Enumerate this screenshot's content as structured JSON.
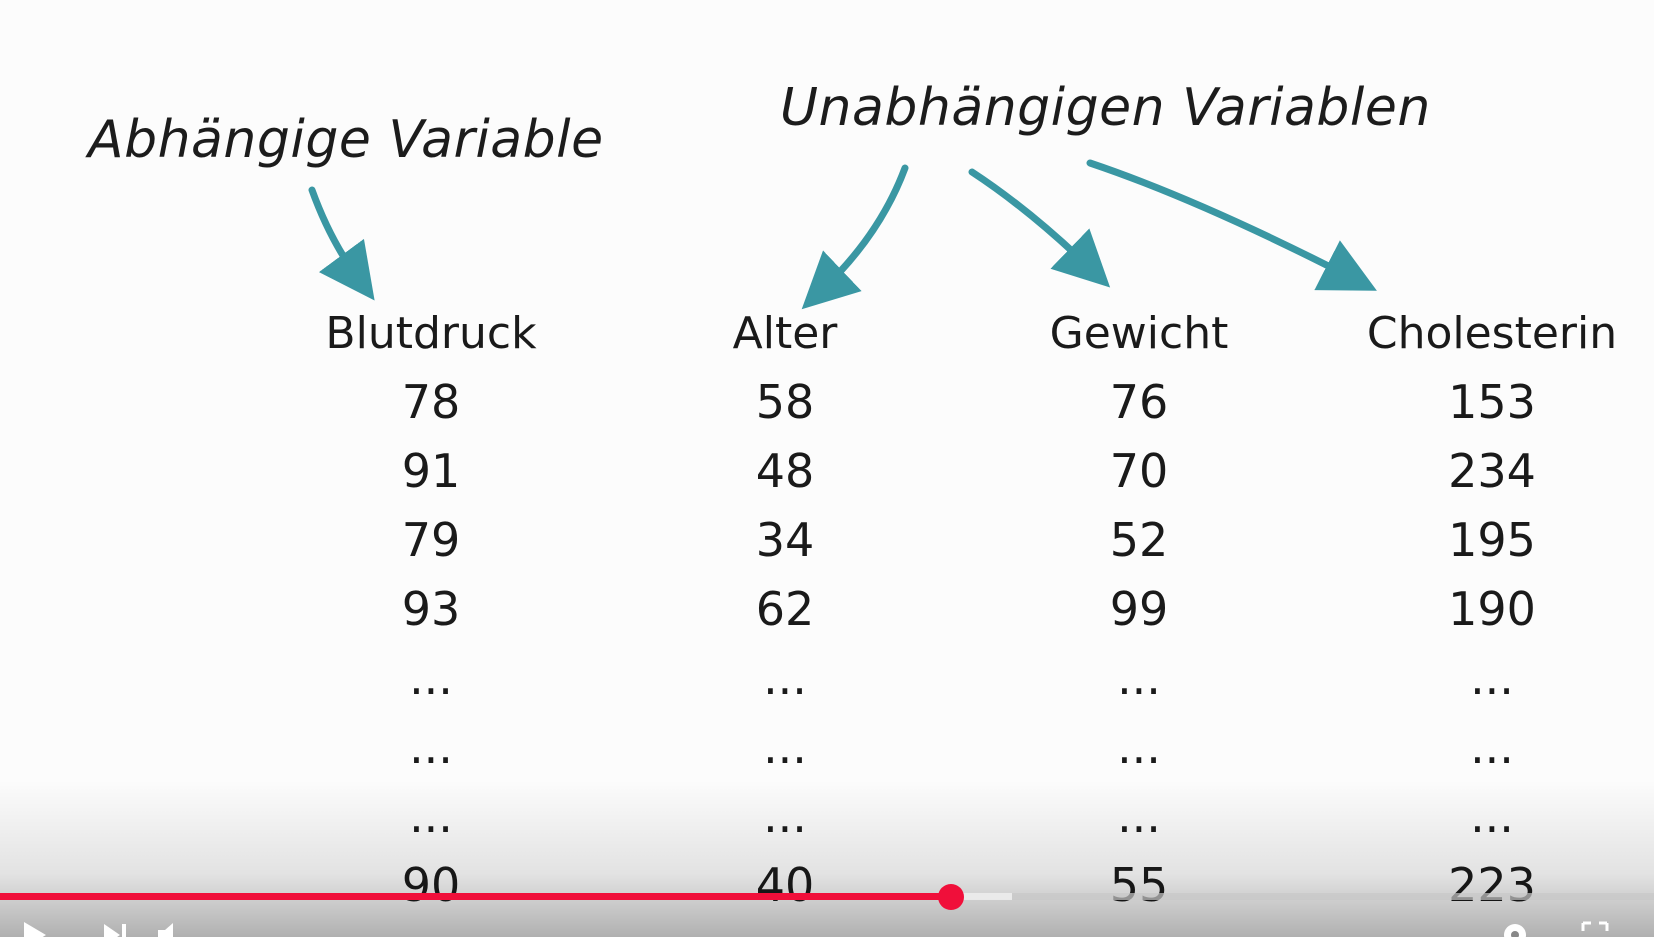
{
  "labels": {
    "dependent": "Abhängige Variable",
    "independent": "Unabhängigen Variablen"
  },
  "table": {
    "columns": [
      {
        "header": "Blutdruck",
        "values": [
          "78",
          "91",
          "79",
          "93",
          "...",
          "...",
          "...",
          "90"
        ]
      },
      {
        "header": "Alter",
        "values": [
          "58",
          "48",
          "34",
          "62",
          "...",
          "...",
          "...",
          "40"
        ]
      },
      {
        "header": "Gewicht",
        "values": [
          "76",
          "70",
          "52",
          "99",
          "...",
          "...",
          "...",
          "55"
        ]
      },
      {
        "header": "Cholesterin",
        "values": [
          "153",
          "234",
          "195",
          "190",
          "...",
          "...",
          "...",
          "223"
        ]
      }
    ]
  },
  "player": {
    "progress_fraction": 0.575,
    "buffered_fraction": 0.612,
    "played_color": "#f00f3a",
    "controls_icons": [
      "play-icon",
      "next-icon",
      "volume-icon",
      "settings-icon",
      "fullscreen-icon"
    ]
  },
  "colors": {
    "arrow": "#3a97a3",
    "text": "#1a1a1a"
  }
}
